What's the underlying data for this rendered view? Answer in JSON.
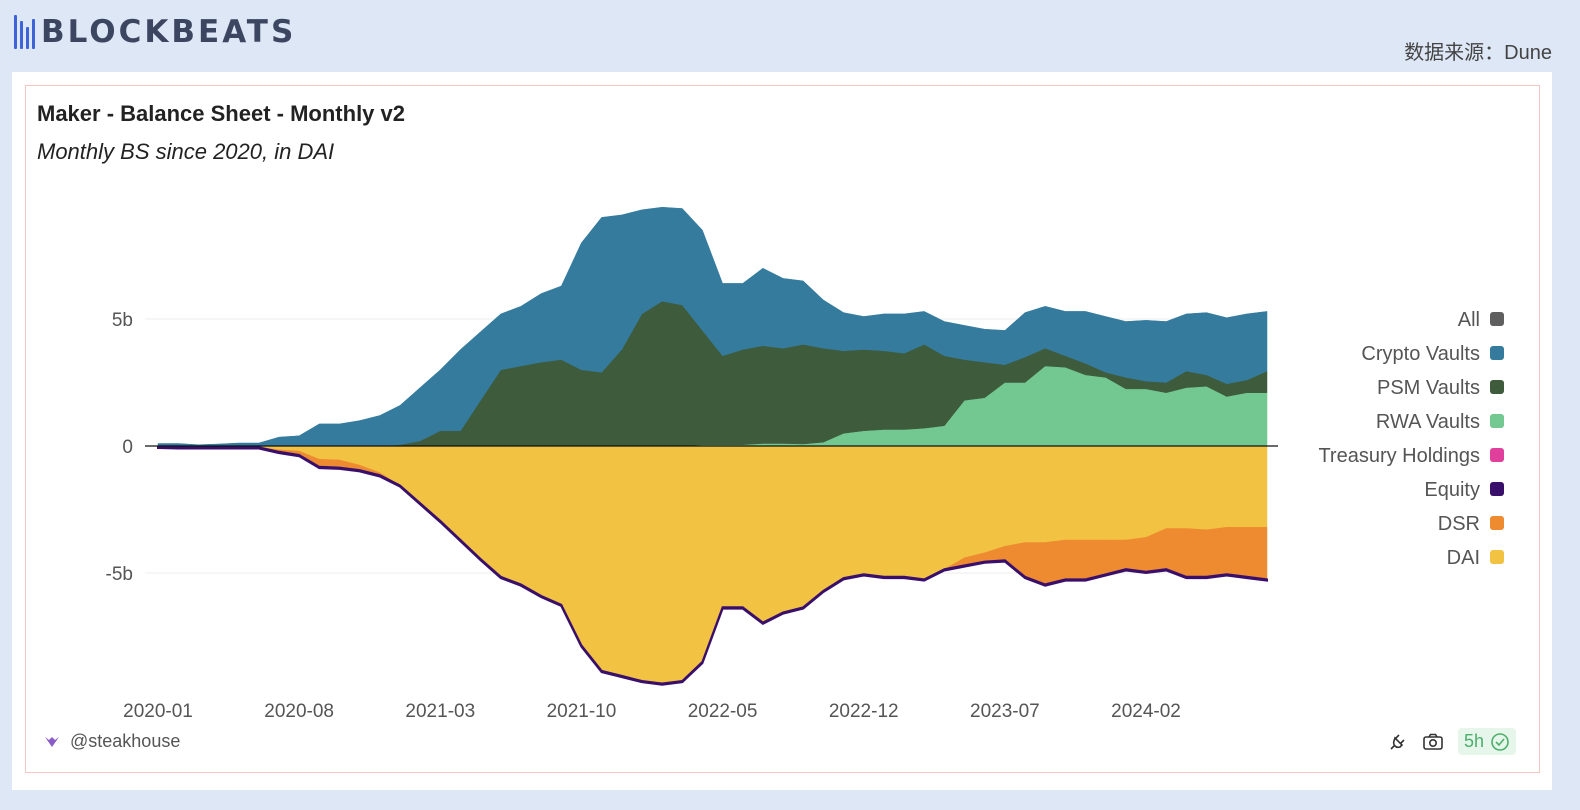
{
  "brand": {
    "logo_text": "BLOCKBEATS",
    "source": "数据来源：Dune"
  },
  "footer": {
    "author": "@steakhouse",
    "refresh": "5h"
  },
  "chart_data": {
    "type": "area",
    "title": "Maker - Balance Sheet - Monthly v2",
    "subtitle": "Monthly BS since 2020, in DAI",
    "xlabel": "",
    "ylabel": "",
    "ylim": [
      -10,
      10
    ],
    "yticks": [
      {
        "value": 5,
        "label": "5b"
      },
      {
        "value": 0,
        "label": "0"
      },
      {
        "value": -5,
        "label": "-5b"
      }
    ],
    "xticks": [
      "2020-01",
      "2020-08",
      "2021-03",
      "2021-10",
      "2022-05",
      "2022-12",
      "2023-07",
      "2024-02"
    ],
    "legend_position": "right",
    "units": "billion DAI",
    "x": [
      "2020-01",
      "2020-02",
      "2020-03",
      "2020-04",
      "2020-05",
      "2020-06",
      "2020-07",
      "2020-08",
      "2020-09",
      "2020-10",
      "2020-11",
      "2020-12",
      "2021-01",
      "2021-02",
      "2021-03",
      "2021-04",
      "2021-05",
      "2021-06",
      "2021-07",
      "2021-08",
      "2021-09",
      "2021-10",
      "2021-11",
      "2021-12",
      "2022-01",
      "2022-02",
      "2022-03",
      "2022-04",
      "2022-05",
      "2022-06",
      "2022-07",
      "2022-08",
      "2022-09",
      "2022-10",
      "2022-11",
      "2022-12",
      "2023-01",
      "2023-02",
      "2023-03",
      "2023-04",
      "2023-05",
      "2023-06",
      "2023-07",
      "2023-08",
      "2023-09",
      "2023-10",
      "2023-11",
      "2023-12",
      "2024-01",
      "2024-02",
      "2024-03",
      "2024-04",
      "2024-05",
      "2024-06",
      "2024-07",
      "2024-08"
    ],
    "series": [
      {
        "name": "All",
        "color": "#5f5f5f",
        "values": null
      },
      {
        "name": "Crypto Vaults",
        "color": "#347b9e",
        "values": [
          0.1,
          0.1,
          0.05,
          0.08,
          0.12,
          0.12,
          0.35,
          0.4,
          0.87,
          0.87,
          1.0,
          1.2,
          1.55,
          2.1,
          2.4,
          3.2,
          2.7,
          2.2,
          2.35,
          2.7,
          2.9,
          5.0,
          6.1,
          5.3,
          4.1,
          3.7,
          3.8,
          3.95,
          2.85,
          2.6,
          3.05,
          2.75,
          2.5,
          1.9,
          1.5,
          1.3,
          1.45,
          1.55,
          1.3,
          1.35,
          1.35,
          1.3,
          1.35,
          1.75,
          1.65,
          1.75,
          2.05,
          2.2,
          2.2,
          2.4,
          2.4,
          2.25,
          2.45,
          2.6,
          2.6,
          2.35
        ]
      },
      {
        "name": "PSM Vaults",
        "color": "#3e5b3c",
        "values": [
          0,
          0,
          0,
          0,
          0,
          0,
          0,
          0,
          0,
          0,
          0,
          0,
          0.05,
          0.2,
          0.6,
          0.6,
          1.8,
          3.0,
          3.15,
          3.3,
          3.4,
          3.0,
          2.9,
          3.8,
          5.2,
          5.7,
          5.55,
          4.5,
          3.5,
          3.75,
          3.85,
          3.75,
          3.92,
          3.7,
          3.25,
          3.2,
          3.1,
          3.0,
          3.3,
          2.75,
          1.6,
          1.4,
          0.7,
          1.0,
          0.7,
          0.45,
          0.45,
          0.2,
          0.45,
          0.3,
          0.4,
          0.65,
          0.45,
          0.5,
          0.5,
          0.85
        ]
      },
      {
        "name": "RWA Vaults",
        "color": "#72c890",
        "values": [
          0,
          0,
          0,
          0,
          0,
          0,
          0,
          0,
          0,
          0,
          0,
          0,
          0,
          0,
          0,
          0,
          0,
          0,
          0,
          0,
          0,
          0,
          0,
          0,
          0,
          0,
          0,
          0.05,
          0.05,
          0.05,
          0.1,
          0.1,
          0.08,
          0.15,
          0.5,
          0.6,
          0.65,
          0.65,
          0.7,
          0.8,
          1.8,
          1.9,
          2.5,
          2.5,
          3.15,
          3.1,
          2.8,
          2.7,
          2.25,
          2.25,
          2.1,
          2.3,
          2.35,
          1.95,
          2.1,
          2.1
        ]
      },
      {
        "name": "Treasury Holdings",
        "color": "#e0409c",
        "values": [
          0,
          0,
          0,
          0,
          0,
          0,
          0,
          0,
          0,
          0,
          0,
          0,
          0,
          0,
          0,
          0,
          0,
          0,
          0,
          0,
          0,
          0,
          0,
          0,
          0,
          0,
          0,
          0,
          0,
          0,
          0,
          0,
          0,
          0,
          0,
          0,
          0,
          0,
          0,
          0,
          0,
          0,
          0,
          0,
          0,
          0,
          0,
          0,
          0,
          0,
          0,
          0,
          0,
          0,
          0,
          0
        ]
      },
      {
        "name": "Equity",
        "color": "#3a0f6b",
        "values": [
          -0.05,
          -0.05,
          -0.05,
          -0.05,
          -0.05,
          -0.05,
          -0.05,
          -0.05,
          -0.05,
          -0.05,
          -0.05,
          -0.05,
          -0.05,
          -0.05,
          -0.05,
          -0.05,
          -0.05,
          -0.05,
          -0.05,
          -0.05,
          -0.05,
          -0.05,
          -0.05,
          -0.05,
          -0.05,
          -0.05,
          -0.05,
          -0.05,
          -0.05,
          -0.05,
          -0.05,
          -0.05,
          -0.05,
          -0.05,
          -0.05,
          -0.05,
          -0.05,
          -0.05,
          -0.05,
          -0.05,
          -0.05,
          -0.05,
          -0.05,
          -0.05,
          -0.05,
          -0.05,
          -0.05,
          -0.05,
          -0.05,
          -0.05,
          -0.05,
          -0.05,
          -0.05,
          -0.05,
          -0.05,
          -0.05
        ]
      },
      {
        "name": "DSR",
        "color": "#ee8a30",
        "values": [
          0,
          0,
          0,
          0,
          0,
          0,
          -0.08,
          -0.15,
          -0.3,
          -0.3,
          -0.2,
          -0.1,
          0,
          0,
          0,
          0,
          0,
          0,
          0,
          0,
          0,
          0,
          0,
          0,
          0,
          0,
          0,
          0,
          0,
          0,
          0,
          0,
          0,
          0,
          0,
          0,
          0,
          0,
          0,
          0,
          -0.3,
          -0.35,
          -0.55,
          -1.35,
          -1.65,
          -1.55,
          -1.55,
          -1.35,
          -1.15,
          -1.35,
          -1.6,
          -1.9,
          -1.85,
          -1.85,
          -1.95,
          -2.05
        ]
      },
      {
        "name": "DAI",
        "color": "#f2c342",
        "values": [
          -0.03,
          -0.05,
          -0.05,
          -0.05,
          -0.05,
          -0.05,
          -0.15,
          -0.2,
          -0.52,
          -0.55,
          -0.75,
          -1.05,
          -1.55,
          -2.25,
          -2.95,
          -3.7,
          -4.45,
          -5.15,
          -5.45,
          -5.9,
          -6.25,
          -7.85,
          -8.85,
          -9.05,
          -9.25,
          -9.35,
          -9.25,
          -8.5,
          -6.35,
          -6.35,
          -6.95,
          -6.55,
          -6.35,
          -5.7,
          -5.2,
          -5.05,
          -5.15,
          -5.15,
          -5.25,
          -4.85,
          -4.4,
          -4.2,
          -3.95,
          -3.8,
          -3.8,
          -3.7,
          -3.7,
          -3.7,
          -3.7,
          -3.6,
          -3.25,
          -3.25,
          -3.3,
          -3.2,
          -3.2,
          -3.2
        ]
      }
    ]
  }
}
